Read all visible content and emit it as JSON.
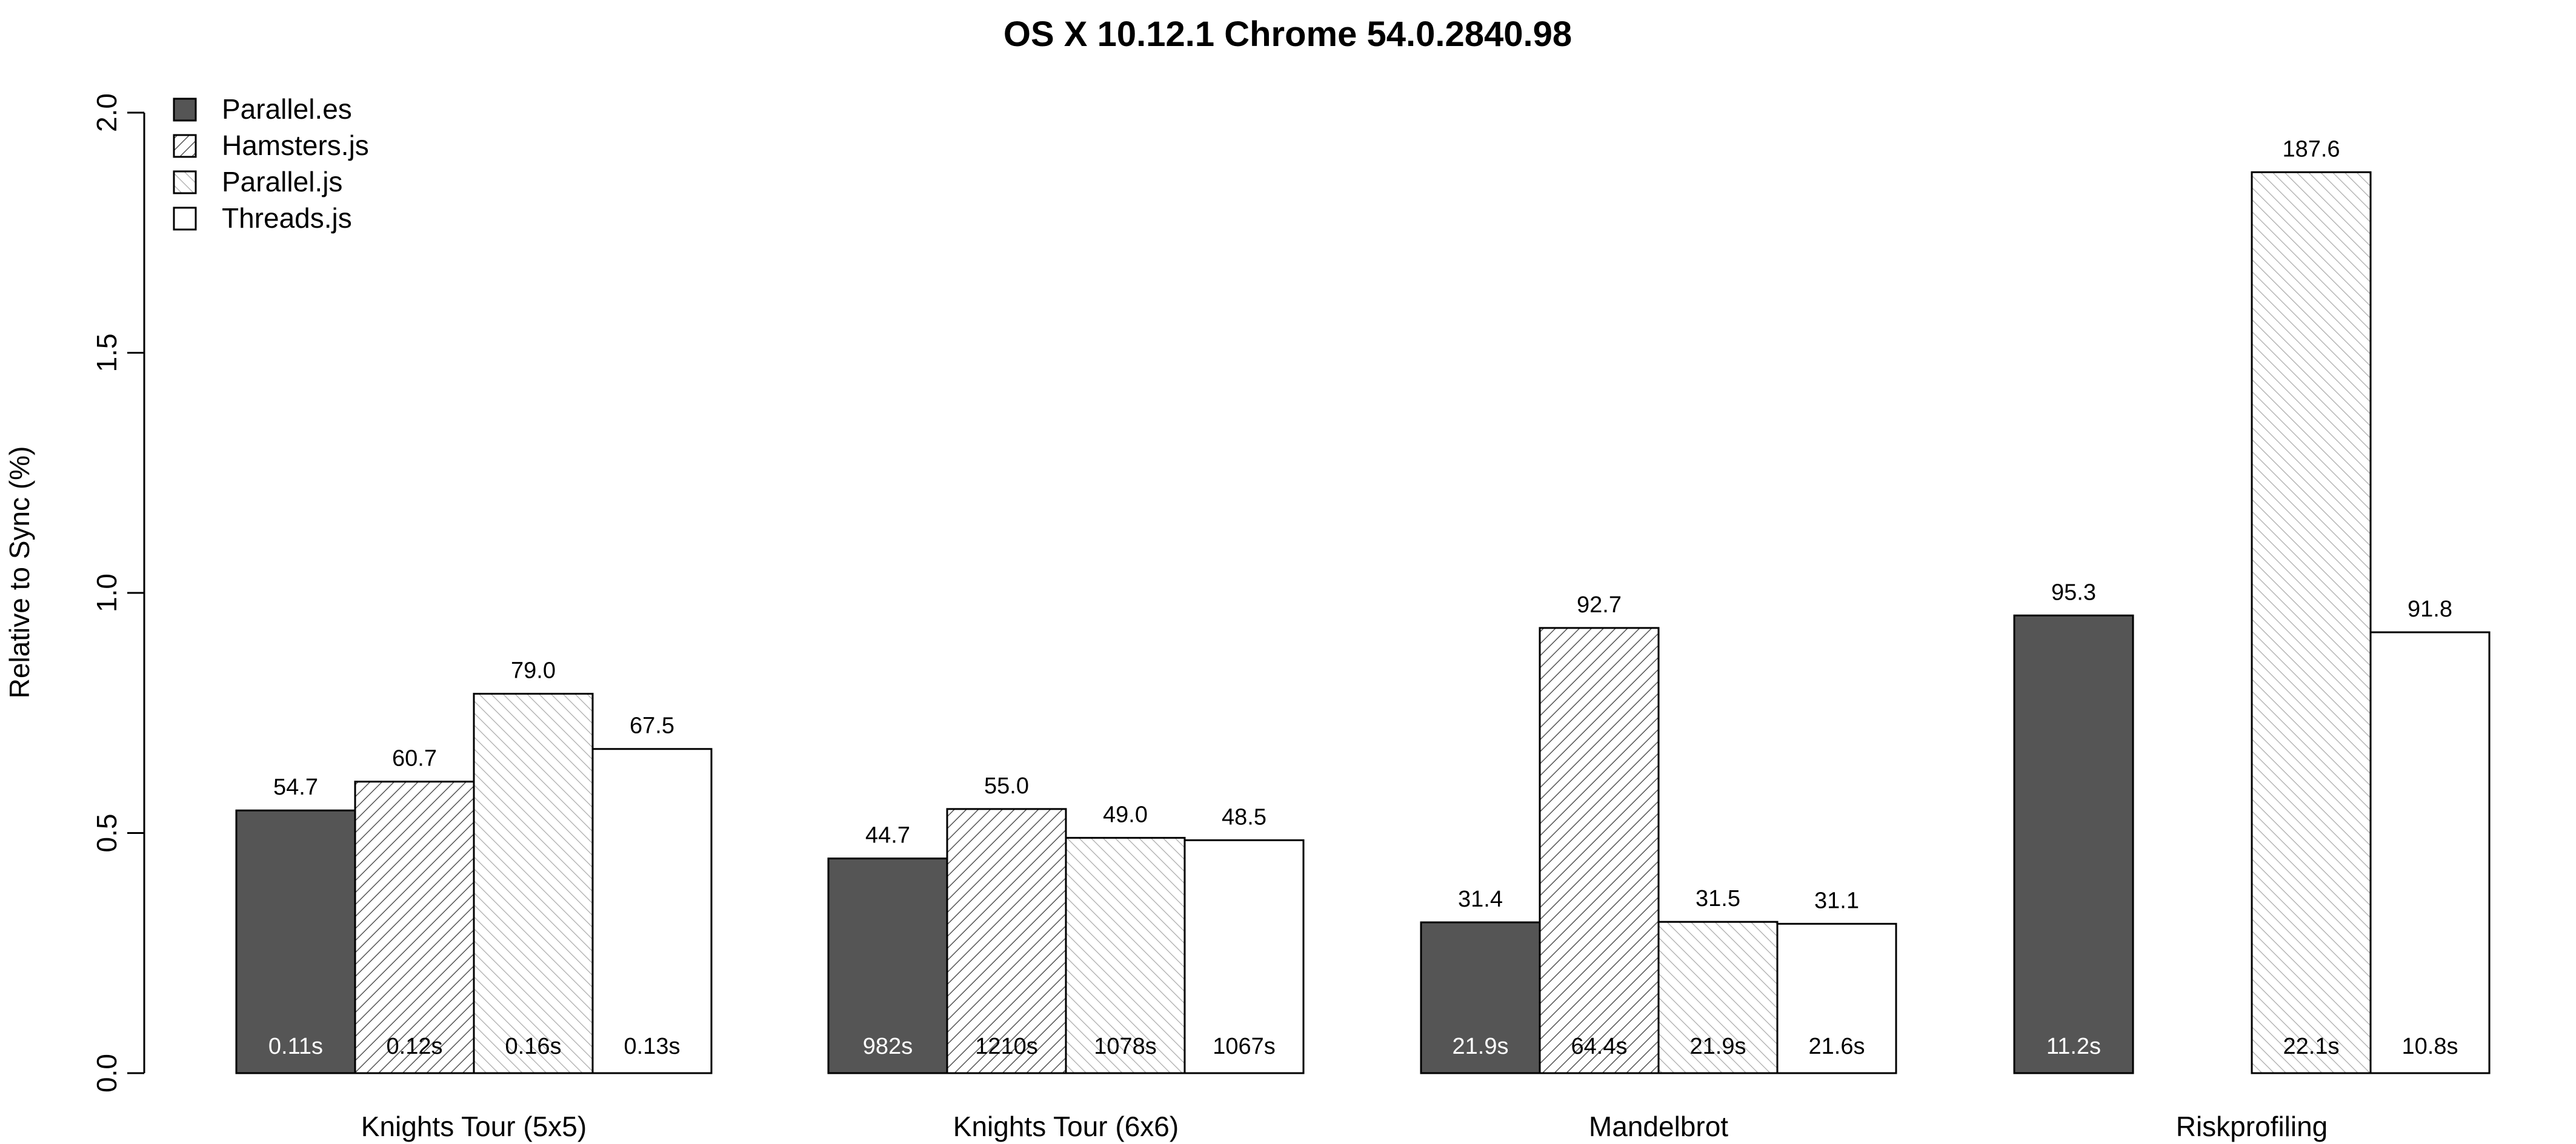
{
  "chart_data": {
    "type": "bar",
    "title": "OS X 10.12.1 Chrome 54.0.2840.98",
    "xlabel": "",
    "ylabel": "Relative to Sync (%)",
    "ylim": [
      0,
      2.0
    ],
    "yticks": [
      "0.0",
      "0.5",
      "1.0",
      "1.5",
      "2.0"
    ],
    "yticks_values": [
      0,
      0.5,
      1.0,
      1.5,
      2.0
    ],
    "grid": false,
    "legend_position": "top-left",
    "categories": [
      "Knights Tour (5x5)",
      "Knights Tour (6x6)",
      "Mandelbrot",
      "Riskprofiling"
    ],
    "series": [
      {
        "name": "Parallel.es",
        "fill": "#555555",
        "pattern": "solid",
        "values": [
          0.547,
          0.447,
          0.314,
          0.953
        ],
        "labels": [
          "54.7",
          "44.7",
          "31.4",
          "95.3"
        ],
        "times": [
          "0.11s",
          "982s",
          "21.9s",
          "11.2s"
        ]
      },
      {
        "name": "Hamsters.js",
        "fill": "#ffffff",
        "pattern": "hatch-dense",
        "values": [
          0.607,
          0.55,
          0.927,
          null
        ],
        "labels": [
          "60.7",
          "55.0",
          "92.7",
          ""
        ],
        "times": [
          "0.12s",
          "1210s",
          "64.4s",
          ""
        ]
      },
      {
        "name": "Parallel.js",
        "fill": "#ffffff",
        "pattern": "hatch-light",
        "values": [
          0.79,
          0.49,
          0.315,
          1.876
        ],
        "labels": [
          "79.0",
          "49.0",
          "31.5",
          "187.6"
        ],
        "times": [
          "0.16s",
          "1078s",
          "21.9s",
          "22.1s"
        ]
      },
      {
        "name": "Threads.js",
        "fill": "#ffffff",
        "pattern": "none",
        "values": [
          0.675,
          0.485,
          0.311,
          0.918
        ],
        "labels": [
          "67.5",
          "48.5",
          "31.1",
          "91.8"
        ],
        "times": [
          "0.13s",
          "1067s",
          "21.6s",
          "10.8s"
        ]
      }
    ]
  }
}
